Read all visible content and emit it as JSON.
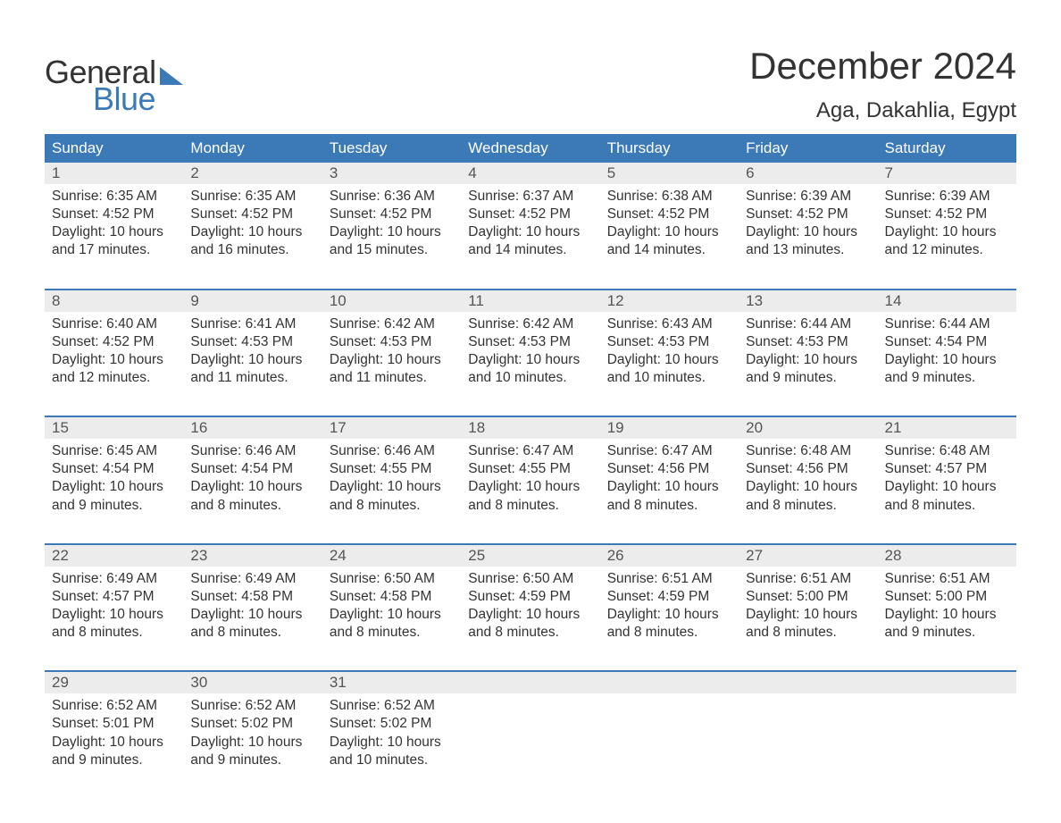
{
  "logo": {
    "word1": "General",
    "word2": "Blue"
  },
  "title": "December 2024",
  "location": "Aga, Dakahlia, Egypt",
  "colors": {
    "brand_blue": "#3b79b7",
    "header_bg": "#3b79b7",
    "header_text": "#ffffff",
    "daynum_bg": "#ececec",
    "text": "#333333",
    "page_bg": "#ffffff"
  },
  "day_headers": [
    "Sunday",
    "Monday",
    "Tuesday",
    "Wednesday",
    "Thursday",
    "Friday",
    "Saturday"
  ],
  "weeks": [
    [
      {
        "n": "1",
        "sr": "Sunrise: 6:35 AM",
        "ss": "Sunset: 4:52 PM",
        "d1": "Daylight: 10 hours",
        "d2": "and 17 minutes."
      },
      {
        "n": "2",
        "sr": "Sunrise: 6:35 AM",
        "ss": "Sunset: 4:52 PM",
        "d1": "Daylight: 10 hours",
        "d2": "and 16 minutes."
      },
      {
        "n": "3",
        "sr": "Sunrise: 6:36 AM",
        "ss": "Sunset: 4:52 PM",
        "d1": "Daylight: 10 hours",
        "d2": "and 15 minutes."
      },
      {
        "n": "4",
        "sr": "Sunrise: 6:37 AM",
        "ss": "Sunset: 4:52 PM",
        "d1": "Daylight: 10 hours",
        "d2": "and 14 minutes."
      },
      {
        "n": "5",
        "sr": "Sunrise: 6:38 AM",
        "ss": "Sunset: 4:52 PM",
        "d1": "Daylight: 10 hours",
        "d2": "and 14 minutes."
      },
      {
        "n": "6",
        "sr": "Sunrise: 6:39 AM",
        "ss": "Sunset: 4:52 PM",
        "d1": "Daylight: 10 hours",
        "d2": "and 13 minutes."
      },
      {
        "n": "7",
        "sr": "Sunrise: 6:39 AM",
        "ss": "Sunset: 4:52 PM",
        "d1": "Daylight: 10 hours",
        "d2": "and 12 minutes."
      }
    ],
    [
      {
        "n": "8",
        "sr": "Sunrise: 6:40 AM",
        "ss": "Sunset: 4:52 PM",
        "d1": "Daylight: 10 hours",
        "d2": "and 12 minutes."
      },
      {
        "n": "9",
        "sr": "Sunrise: 6:41 AM",
        "ss": "Sunset: 4:53 PM",
        "d1": "Daylight: 10 hours",
        "d2": "and 11 minutes."
      },
      {
        "n": "10",
        "sr": "Sunrise: 6:42 AM",
        "ss": "Sunset: 4:53 PM",
        "d1": "Daylight: 10 hours",
        "d2": "and 11 minutes."
      },
      {
        "n": "11",
        "sr": "Sunrise: 6:42 AM",
        "ss": "Sunset: 4:53 PM",
        "d1": "Daylight: 10 hours",
        "d2": "and 10 minutes."
      },
      {
        "n": "12",
        "sr": "Sunrise: 6:43 AM",
        "ss": "Sunset: 4:53 PM",
        "d1": "Daylight: 10 hours",
        "d2": "and 10 minutes."
      },
      {
        "n": "13",
        "sr": "Sunrise: 6:44 AM",
        "ss": "Sunset: 4:53 PM",
        "d1": "Daylight: 10 hours",
        "d2": "and 9 minutes."
      },
      {
        "n": "14",
        "sr": "Sunrise: 6:44 AM",
        "ss": "Sunset: 4:54 PM",
        "d1": "Daylight: 10 hours",
        "d2": "and 9 minutes."
      }
    ],
    [
      {
        "n": "15",
        "sr": "Sunrise: 6:45 AM",
        "ss": "Sunset: 4:54 PM",
        "d1": "Daylight: 10 hours",
        "d2": "and 9 minutes."
      },
      {
        "n": "16",
        "sr": "Sunrise: 6:46 AM",
        "ss": "Sunset: 4:54 PM",
        "d1": "Daylight: 10 hours",
        "d2": "and 8 minutes."
      },
      {
        "n": "17",
        "sr": "Sunrise: 6:46 AM",
        "ss": "Sunset: 4:55 PM",
        "d1": "Daylight: 10 hours",
        "d2": "and 8 minutes."
      },
      {
        "n": "18",
        "sr": "Sunrise: 6:47 AM",
        "ss": "Sunset: 4:55 PM",
        "d1": "Daylight: 10 hours",
        "d2": "and 8 minutes."
      },
      {
        "n": "19",
        "sr": "Sunrise: 6:47 AM",
        "ss": "Sunset: 4:56 PM",
        "d1": "Daylight: 10 hours",
        "d2": "and 8 minutes."
      },
      {
        "n": "20",
        "sr": "Sunrise: 6:48 AM",
        "ss": "Sunset: 4:56 PM",
        "d1": "Daylight: 10 hours",
        "d2": "and 8 minutes."
      },
      {
        "n": "21",
        "sr": "Sunrise: 6:48 AM",
        "ss": "Sunset: 4:57 PM",
        "d1": "Daylight: 10 hours",
        "d2": "and 8 minutes."
      }
    ],
    [
      {
        "n": "22",
        "sr": "Sunrise: 6:49 AM",
        "ss": "Sunset: 4:57 PM",
        "d1": "Daylight: 10 hours",
        "d2": "and 8 minutes."
      },
      {
        "n": "23",
        "sr": "Sunrise: 6:49 AM",
        "ss": "Sunset: 4:58 PM",
        "d1": "Daylight: 10 hours",
        "d2": "and 8 minutes."
      },
      {
        "n": "24",
        "sr": "Sunrise: 6:50 AM",
        "ss": "Sunset: 4:58 PM",
        "d1": "Daylight: 10 hours",
        "d2": "and 8 minutes."
      },
      {
        "n": "25",
        "sr": "Sunrise: 6:50 AM",
        "ss": "Sunset: 4:59 PM",
        "d1": "Daylight: 10 hours",
        "d2": "and 8 minutes."
      },
      {
        "n": "26",
        "sr": "Sunrise: 6:51 AM",
        "ss": "Sunset: 4:59 PM",
        "d1": "Daylight: 10 hours",
        "d2": "and 8 minutes."
      },
      {
        "n": "27",
        "sr": "Sunrise: 6:51 AM",
        "ss": "Sunset: 5:00 PM",
        "d1": "Daylight: 10 hours",
        "d2": "and 8 minutes."
      },
      {
        "n": "28",
        "sr": "Sunrise: 6:51 AM",
        "ss": "Sunset: 5:00 PM",
        "d1": "Daylight: 10 hours",
        "d2": "and 9 minutes."
      }
    ],
    [
      {
        "n": "29",
        "sr": "Sunrise: 6:52 AM",
        "ss": "Sunset: 5:01 PM",
        "d1": "Daylight: 10 hours",
        "d2": "and 9 minutes."
      },
      {
        "n": "30",
        "sr": "Sunrise: 6:52 AM",
        "ss": "Sunset: 5:02 PM",
        "d1": "Daylight: 10 hours",
        "d2": "and 9 minutes."
      },
      {
        "n": "31",
        "sr": "Sunrise: 6:52 AM",
        "ss": "Sunset: 5:02 PM",
        "d1": "Daylight: 10 hours",
        "d2": "and 10 minutes."
      },
      null,
      null,
      null,
      null
    ]
  ]
}
